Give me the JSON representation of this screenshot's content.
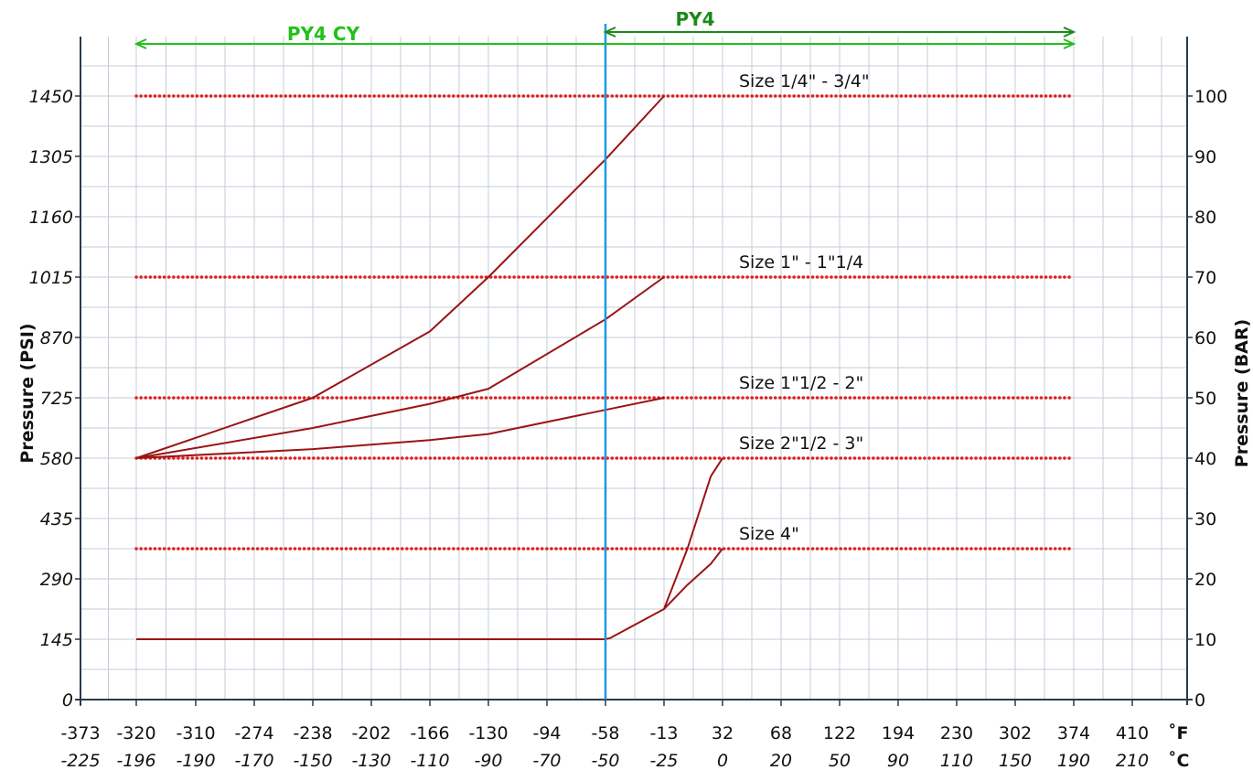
{
  "chart_data": {
    "type": "line",
    "ylabel_left": "Pressure (PSI)",
    "ylabel_right": "Pressure (BAR)",
    "y_ticks_psi": [
      "0",
      "145",
      "290",
      "435",
      "580",
      "725",
      "870",
      "1015",
      "1160",
      "1305",
      "1450"
    ],
    "y_ticks_bar": [
      "0",
      "10",
      "20",
      "30",
      "40",
      "50",
      "60",
      "70",
      "80",
      "90",
      "100"
    ],
    "ylim_bar": [
      0,
      100
    ],
    "x_ticks_f": [
      "-373",
      "-320",
      "-310",
      "-274",
      "-238",
      "-202",
      "-166",
      "-130",
      "-94",
      "-58",
      "-13",
      "32",
      "68",
      "122",
      "194",
      "230",
      "302",
      "374",
      "410"
    ],
    "x_ticks_c": [
      "-225",
      "-196",
      "-190",
      "-170",
      "-150",
      "-130",
      "-110",
      "-90",
      "-70",
      "-50",
      "-25",
      "0",
      "20",
      "50",
      "90",
      "110",
      "150",
      "190",
      "210"
    ],
    "x_unit_f": "˚F",
    "x_unit_c": "˚C",
    "grid": true,
    "regions": [
      {
        "label": "PY4 CY",
        "from_c": -196,
        "to_c": -50,
        "color": "#22c01a"
      },
      {
        "label": "PY4",
        "from_c": -50,
        "to_c": 190,
        "color": "#1a8a1a"
      }
    ],
    "divider_c": -50,
    "divider_color": "#1a9ae0",
    "limit_color": "#e02020",
    "curve_color": "#9b1414",
    "limits": [
      {
        "label": "Size 1/4\" - 3/4\"",
        "bar": 100
      },
      {
        "label": "Size 1\" - 1\"1/4",
        "bar": 70
      },
      {
        "label": "Size 1\"1/2 - 2\"",
        "bar": 50
      },
      {
        "label": "Size 2\"1/2 - 3\"",
        "bar": 40
      },
      {
        "label": "Size 4\"",
        "bar": 25
      }
    ],
    "series": [
      {
        "points_c_bar": [
          [
            -196,
            40
          ],
          [
            -150,
            50
          ],
          [
            -110,
            61
          ],
          [
            -90,
            70
          ],
          [
            -50,
            89.5
          ],
          [
            -25,
            100
          ]
        ]
      },
      {
        "points_c_bar": [
          [
            -196,
            40
          ],
          [
            -150,
            45
          ],
          [
            -110,
            49
          ],
          [
            -90,
            51.5
          ],
          [
            -50,
            63
          ],
          [
            -25,
            70
          ]
        ]
      },
      {
        "points_c_bar": [
          [
            -196,
            40
          ],
          [
            -150,
            41.5
          ],
          [
            -110,
            43
          ],
          [
            -90,
            44
          ],
          [
            -50,
            48
          ],
          [
            -25,
            50
          ]
        ]
      },
      {
        "points_c_bar": [
          [
            -196,
            10
          ],
          [
            -50,
            10
          ],
          [
            -48,
            10.2
          ],
          [
            -25,
            15
          ],
          [
            -15,
            25
          ],
          [
            -5,
            37
          ],
          [
            0,
            40
          ]
        ]
      },
      {
        "points_c_bar": [
          [
            -25,
            15
          ],
          [
            -15,
            19
          ],
          [
            -5,
            22.5
          ],
          [
            0,
            25
          ]
        ]
      }
    ]
  }
}
